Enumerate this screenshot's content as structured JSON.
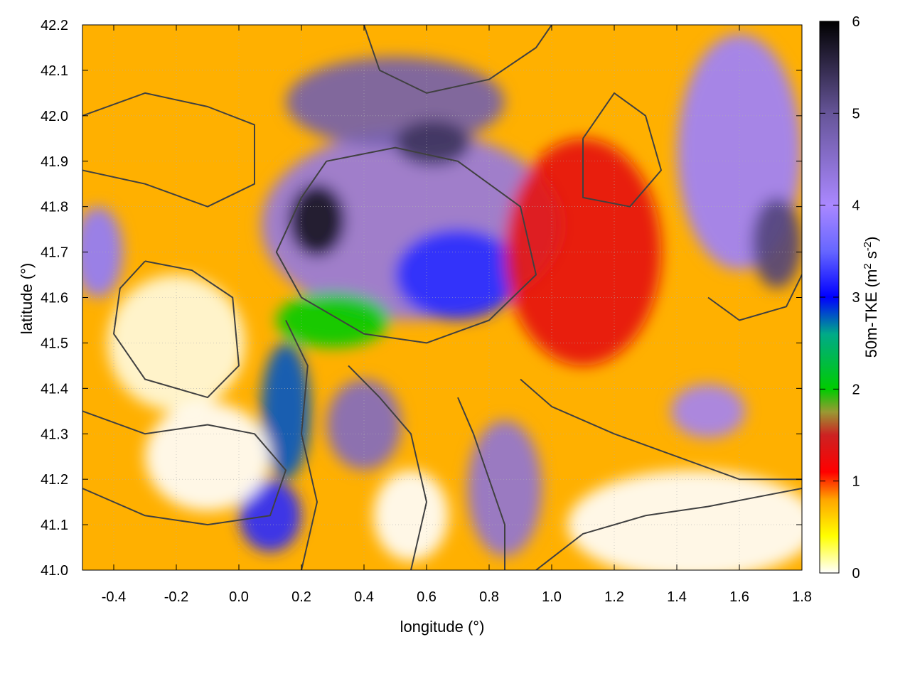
{
  "chart_data": {
    "type": "heatmap",
    "title": "",
    "xlabel": "longitude (°)",
    "ylabel": "latitude (°)",
    "xlim": [
      -0.5,
      1.8
    ],
    "ylim": [
      41.0,
      42.2
    ],
    "x_ticks": [
      -0.4,
      -0.2,
      0.0,
      0.2,
      0.4,
      0.6,
      0.8,
      1.0,
      1.2,
      1.4,
      1.6,
      1.8
    ],
    "x_tick_labels": [
      "-0.4",
      "-0.2",
      "0.0",
      "0.2",
      "0.4",
      "0.6",
      "0.8",
      "1.0",
      "1.2",
      "1.4",
      "1.6",
      "1.8"
    ],
    "y_ticks": [
      41.0,
      41.1,
      41.2,
      41.3,
      41.4,
      41.5,
      41.6,
      41.7,
      41.8,
      41.9,
      42.0,
      42.1,
      42.2
    ],
    "y_tick_labels": [
      "41.0",
      "41.1",
      "41.2",
      "41.3",
      "41.4",
      "41.5",
      "41.6",
      "41.7",
      "41.8",
      "41.9",
      "42.0",
      "42.1",
      "42.2"
    ],
    "grid": true,
    "colorbar": {
      "label": "50m-TKE (m² s⁻²)",
      "label_main": "50m-TKE (m",
      "label_sup1": "2",
      "label_mid": " s",
      "label_sup2": "-2",
      "label_end": ")",
      "range": [
        0,
        6
      ],
      "ticks": [
        0,
        1,
        2,
        3,
        4,
        5,
        6
      ],
      "tick_labels": [
        "0",
        "1",
        "2",
        "3",
        "4",
        "5",
        "6"
      ],
      "palette_stops": [
        {
          "v": 0.0,
          "c": "#ffffff"
        },
        {
          "v": 0.4,
          "c": "#ffff00"
        },
        {
          "v": 0.8,
          "c": "#ffa500"
        },
        {
          "v": 1.1,
          "c": "#ff0000"
        },
        {
          "v": 1.5,
          "c": "#cc2222"
        },
        {
          "v": 1.75,
          "c": "#999933"
        },
        {
          "v": 2.0,
          "c": "#00cc00"
        },
        {
          "v": 2.6,
          "c": "#00aa88"
        },
        {
          "v": 3.0,
          "c": "#0000ff"
        },
        {
          "v": 3.5,
          "c": "#6666ff"
        },
        {
          "v": 4.0,
          "c": "#aa88ff"
        },
        {
          "v": 5.0,
          "c": "#665599"
        },
        {
          "v": 6.0,
          "c": "#000000"
        }
      ]
    },
    "field_blobs": [
      {
        "lon": 0.55,
        "lat": 41.76,
        "rlon": 0.48,
        "rlat": 0.21,
        "val": 4.3
      },
      {
        "lon": 0.25,
        "lat": 41.77,
        "rlon": 0.09,
        "rlat": 0.08,
        "val": 5.8
      },
      {
        "lon": 0.7,
        "lat": 41.65,
        "rlon": 0.2,
        "rlat": 0.1,
        "val": 3.2
      },
      {
        "lon": 0.5,
        "lat": 42.03,
        "rlon": 0.35,
        "rlat": 0.1,
        "val": 4.8
      },
      {
        "lon": 0.62,
        "lat": 41.94,
        "rlon": 0.12,
        "rlat": 0.05,
        "val": 5.4
      },
      {
        "lon": 1.6,
        "lat": 41.92,
        "rlon": 0.2,
        "rlat": 0.26,
        "val": 3.9
      },
      {
        "lon": 1.72,
        "lat": 41.72,
        "rlon": 0.08,
        "rlat": 0.1,
        "val": 5.2
      },
      {
        "lon": 0.4,
        "lat": 41.32,
        "rlon": 0.12,
        "rlat": 0.1,
        "val": 4.6
      },
      {
        "lon": 0.85,
        "lat": 41.18,
        "rlon": 0.12,
        "rlat": 0.15,
        "val": 4.4
      },
      {
        "lon": 0.15,
        "lat": 41.35,
        "rlon": 0.08,
        "rlat": 0.15,
        "val": 2.8
      },
      {
        "lon": 0.1,
        "lat": 41.12,
        "rlon": 0.1,
        "rlat": 0.08,
        "val": 3.2
      },
      {
        "lon": -0.45,
        "lat": 41.7,
        "rlon": 0.08,
        "rlat": 0.1,
        "val": 3.8
      },
      {
        "lon": 1.5,
        "lat": 41.35,
        "rlon": 0.12,
        "rlat": 0.06,
        "val": 4.1
      },
      {
        "lon": 1.1,
        "lat": 41.7,
        "rlon": 0.25,
        "rlat": 0.25,
        "val": 1.3
      },
      {
        "lon": 0.3,
        "lat": 41.55,
        "rlon": 0.18,
        "rlat": 0.06,
        "val": 2.0
      },
      {
        "lon": -0.2,
        "lat": 41.5,
        "rlon": 0.22,
        "rlat": 0.15,
        "val": -0.3
      },
      {
        "lon": -0.1,
        "lat": 41.25,
        "rlon": 0.2,
        "rlat": 0.12,
        "val": 0.0
      },
      {
        "lon": 1.45,
        "lat": 41.1,
        "rlon": 0.4,
        "rlat": 0.12,
        "val": 0.0
      },
      {
        "lon": 0.55,
        "lat": 41.12,
        "rlon": 0.12,
        "rlat": 0.1,
        "val": 0.0
      }
    ],
    "contours": [
      [
        [
          0.28,
          41.9
        ],
        [
          0.2,
          41.82
        ],
        [
          0.12,
          41.7
        ],
        [
          0.2,
          41.6
        ],
        [
          0.4,
          41.52
        ],
        [
          0.6,
          41.5
        ],
        [
          0.8,
          41.55
        ],
        [
          0.95,
          41.65
        ],
        [
          0.9,
          41.8
        ],
        [
          0.7,
          41.9
        ],
        [
          0.5,
          41.93
        ],
        [
          0.28,
          41.9
        ]
      ],
      [
        [
          -0.3,
          41.68
        ],
        [
          -0.15,
          41.66
        ],
        [
          -0.02,
          41.6
        ],
        [
          0.0,
          41.45
        ],
        [
          -0.1,
          41.38
        ],
        [
          -0.3,
          41.42
        ],
        [
          -0.4,
          41.52
        ],
        [
          -0.38,
          41.62
        ],
        [
          -0.3,
          41.68
        ]
      ],
      [
        [
          -0.5,
          41.35
        ],
        [
          -0.3,
          41.3
        ],
        [
          -0.1,
          41.32
        ],
        [
          0.05,
          41.3
        ],
        [
          0.15,
          41.22
        ],
        [
          0.1,
          41.12
        ],
        [
          -0.1,
          41.1
        ],
        [
          -0.3,
          41.12
        ],
        [
          -0.5,
          41.18
        ]
      ],
      [
        [
          -0.5,
          42.0
        ],
        [
          -0.3,
          42.05
        ],
        [
          -0.1,
          42.02
        ],
        [
          0.05,
          41.98
        ],
        [
          0.05,
          41.85
        ],
        [
          -0.1,
          41.8
        ],
        [
          -0.3,
          41.85
        ],
        [
          -0.5,
          41.88
        ]
      ],
      [
        [
          0.9,
          41.42
        ],
        [
          1.0,
          41.36
        ],
        [
          1.2,
          41.3
        ],
        [
          1.4,
          41.25
        ],
        [
          1.6,
          41.2
        ],
        [
          1.8,
          41.2
        ]
      ],
      [
        [
          0.95,
          41.0
        ],
        [
          1.1,
          41.08
        ],
        [
          1.3,
          41.12
        ],
        [
          1.5,
          41.14
        ],
        [
          1.8,
          41.18
        ]
      ],
      [
        [
          0.7,
          41.38
        ],
        [
          0.75,
          41.3
        ],
        [
          0.8,
          41.2
        ],
        [
          0.85,
          41.1
        ],
        [
          0.85,
          41.0
        ]
      ],
      [
        [
          1.1,
          41.95
        ],
        [
          1.2,
          42.05
        ],
        [
          1.3,
          42.0
        ],
        [
          1.35,
          41.88
        ],
        [
          1.25,
          41.8
        ],
        [
          1.1,
          41.82
        ],
        [
          1.1,
          41.95
        ]
      ],
      [
        [
          0.4,
          42.2
        ],
        [
          0.45,
          42.1
        ],
        [
          0.6,
          42.05
        ],
        [
          0.8,
          42.08
        ],
        [
          0.95,
          42.15
        ],
        [
          1.0,
          42.2
        ]
      ],
      [
        [
          1.5,
          41.6
        ],
        [
          1.6,
          41.55
        ],
        [
          1.75,
          41.58
        ],
        [
          1.8,
          41.65
        ]
      ],
      [
        [
          0.35,
          41.45
        ],
        [
          0.45,
          41.38
        ],
        [
          0.55,
          41.3
        ],
        [
          0.6,
          41.15
        ],
        [
          0.55,
          41.0
        ]
      ],
      [
        [
          0.15,
          41.55
        ],
        [
          0.22,
          41.45
        ],
        [
          0.2,
          41.3
        ],
        [
          0.25,
          41.15
        ],
        [
          0.2,
          41.0
        ]
      ]
    ]
  }
}
